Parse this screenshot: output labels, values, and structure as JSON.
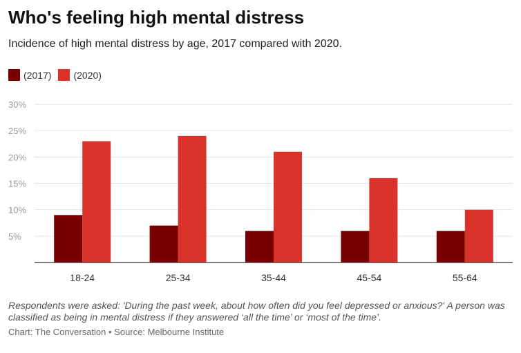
{
  "colors": {
    "s2017": "#7a0000",
    "s2020": "#d9322a",
    "grid": "#e3e3e3",
    "axis": "#333333"
  },
  "chart_data": {
    "type": "bar",
    "title": "Who's feeling high mental distress",
    "subtitle": "Incidence of high mental distress by age, 2017 compared with 2020.",
    "categories": [
      "18-24",
      "25-34",
      "35-44",
      "45-54",
      "55-64"
    ],
    "series": [
      {
        "name": "(2017)",
        "values": [
          9,
          7,
          6,
          6,
          6
        ]
      },
      {
        "name": "(2020)",
        "values": [
          23,
          24,
          21,
          16,
          10
        ]
      }
    ],
    "ylim": [
      0,
      30
    ],
    "yticks": [
      "5%",
      "10%",
      "15%",
      "20%",
      "25%",
      "30%"
    ],
    "legend_position": "top-left",
    "grid": true,
    "note": "Respondents were asked: 'During the past week, about how often did you feel depressed or anxious?' A person was classified as being in mental distress if they answered ‘all the time’ or ‘most of the time’.",
    "credit": "Chart: The Conversation • Source: Melbourne Institute"
  }
}
